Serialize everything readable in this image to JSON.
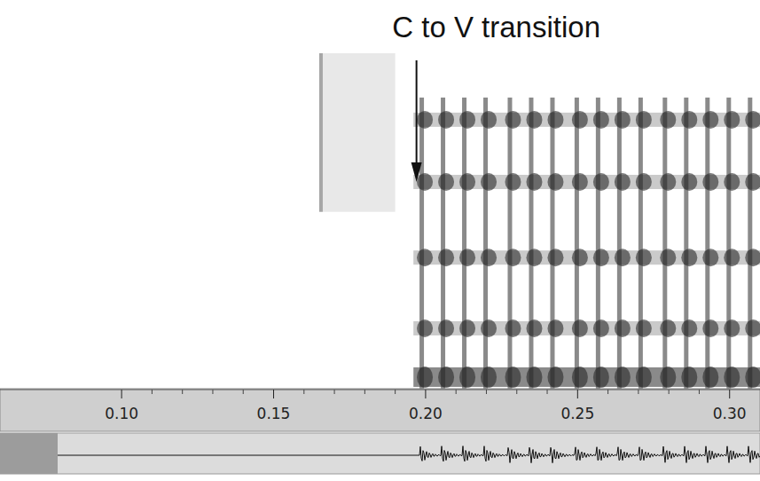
{
  "chart_data": {
    "type": "spectrogram",
    "annotation": "C to V transition",
    "annotation_x": 0.197,
    "xlim": [
      0.06,
      0.31
    ],
    "xticks": [
      {
        "value": 0.1,
        "label": "0.10"
      },
      {
        "value": 0.15,
        "label": "0.15"
      },
      {
        "value": 0.2,
        "label": "0.20"
      },
      {
        "value": 0.25,
        "label": "0.25"
      },
      {
        "value": 0.3,
        "label": "0.30"
      }
    ],
    "ylim": [
      0,
      5500
    ],
    "tick_labels": "x",
    "burst": [
      0.165,
      0.19
    ],
    "burst_freq": [
      2900,
      5500
    ],
    "voicing_onset": 0.196,
    "pulses": [
      0.198,
      0.205,
      0.212,
      0.219,
      0.227,
      0.234,
      0.241,
      0.249,
      0.256,
      0.263,
      0.27,
      0.278,
      0.285,
      0.292,
      0.299,
      0.306
    ],
    "formants": [
      190,
      990,
      2150,
      3390,
      4410
    ],
    "color": "#2a2a2a"
  }
}
